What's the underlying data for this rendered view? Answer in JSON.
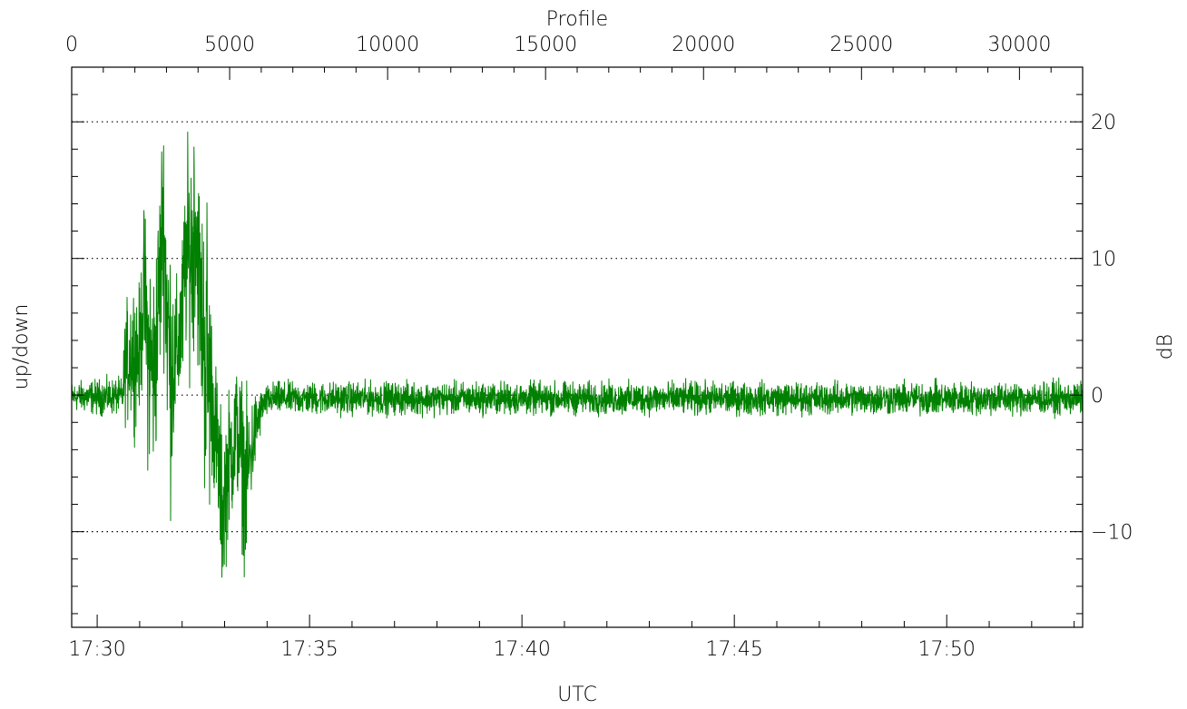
{
  "chart_data": {
    "type": "line",
    "title": "",
    "top_axis": {
      "label": "Profile",
      "ticks": [
        0,
        5000,
        10000,
        15000,
        20000,
        25000,
        30000
      ],
      "tick_labels": [
        "0",
        "5000",
        "10000",
        "15000",
        "20000",
        "25000",
        "30000"
      ],
      "range": [
        0,
        32000
      ]
    },
    "bottom_axis": {
      "label": "UTC",
      "tick_labels": [
        "17:30",
        "17:35",
        "17:40",
        "17:45",
        "17:50"
      ],
      "tick_minutes": [
        30,
        35,
        40,
        45,
        50
      ],
      "range_minutes": [
        29.4,
        53.2
      ]
    },
    "left_axis": {
      "label": "up/down"
    },
    "right_axis": {
      "label": "dB",
      "ticks": [
        20,
        10,
        0,
        -10
      ],
      "tick_labels": [
        "20",
        "10",
        "0",
        "−10"
      ],
      "range": [
        -17,
        24
      ]
    },
    "grid": {
      "style": "dotted",
      "y_values": [
        20,
        10,
        0,
        -10
      ]
    },
    "series": [
      {
        "color": "#008000",
        "envelope": [
          [
            29.4,
            -1.2,
            1.0
          ],
          [
            30.0,
            -1.5,
            1.2
          ],
          [
            30.6,
            -1.5,
            1.3
          ],
          [
            30.65,
            -2.0,
            6.0
          ],
          [
            30.8,
            -2.5,
            9.0
          ],
          [
            31.0,
            -2.0,
            8.0
          ],
          [
            31.1,
            2.0,
            14.0
          ],
          [
            31.2,
            -6.0,
            12.0
          ],
          [
            31.35,
            -7.0,
            10.0
          ],
          [
            31.5,
            2.0,
            18.0
          ],
          [
            31.55,
            5.0,
            22.0
          ],
          [
            31.7,
            -9.5,
            14.0
          ],
          [
            31.85,
            -3.0,
            8.0
          ],
          [
            32.0,
            -1.0,
            12.0
          ],
          [
            32.1,
            3.0,
            18.0
          ],
          [
            32.25,
            1.0,
            20.0
          ],
          [
            32.3,
            5.0,
            22.5
          ],
          [
            32.45,
            -2.0,
            14.0
          ],
          [
            32.6,
            -13.0,
            17.0
          ],
          [
            32.7,
            -6.0,
            6.0
          ],
          [
            32.85,
            -11.0,
            1.0
          ],
          [
            32.95,
            -15.0,
            -2.0
          ],
          [
            33.1,
            -10.0,
            0.5
          ],
          [
            33.3,
            -8.0,
            3.0
          ],
          [
            33.5,
            -13.5,
            0.0
          ],
          [
            33.6,
            -9.0,
            0.0
          ],
          [
            33.75,
            -5.0,
            0.5
          ],
          [
            33.9,
            -2.0,
            0.5
          ],
          [
            34.1,
            -1.5,
            1.0
          ],
          [
            53.2,
            -1.5,
            1.0
          ]
        ]
      }
    ]
  }
}
